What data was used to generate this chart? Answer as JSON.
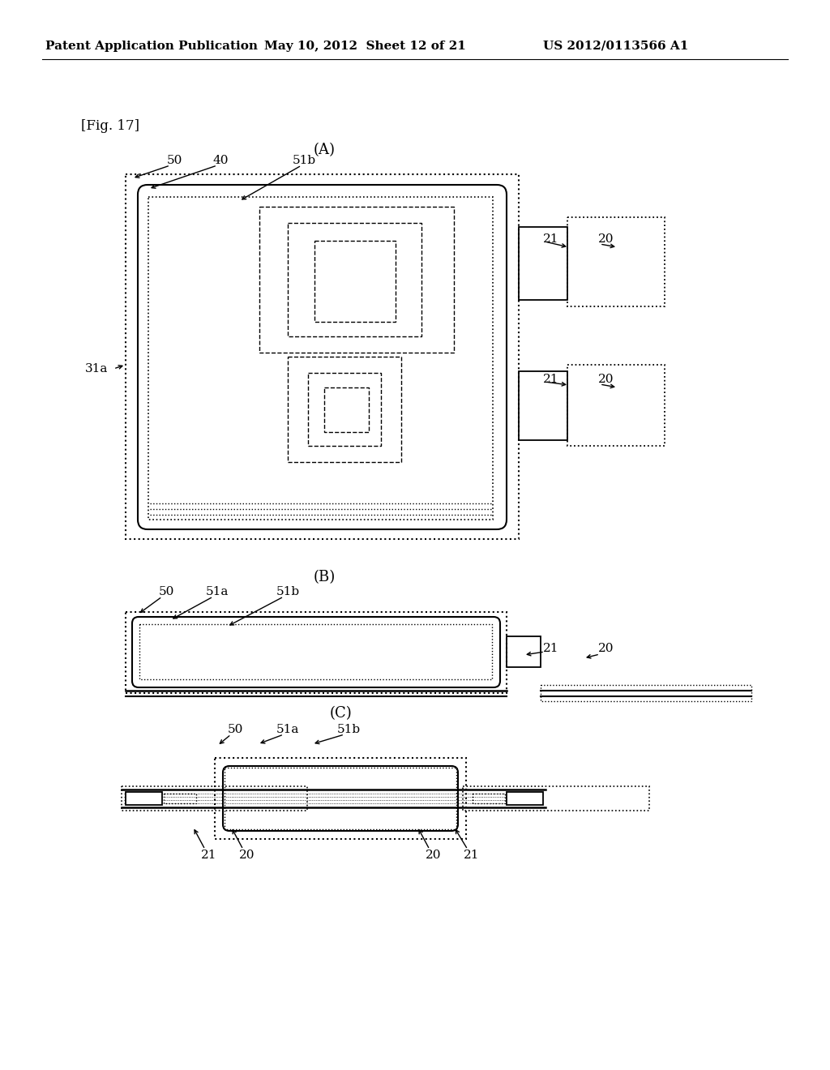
{
  "bg_color": "#ffffff",
  "line_color": "#000000",
  "header_text1": "Patent Application Publication",
  "header_text2": "May 10, 2012  Sheet 12 of 21",
  "header_text3": "US 2012/0113566 A1",
  "fig_label": "[Fig. 17]",
  "panel_A_label": "(A)",
  "panel_B_label": "(B)",
  "panel_C_label": "(C)"
}
